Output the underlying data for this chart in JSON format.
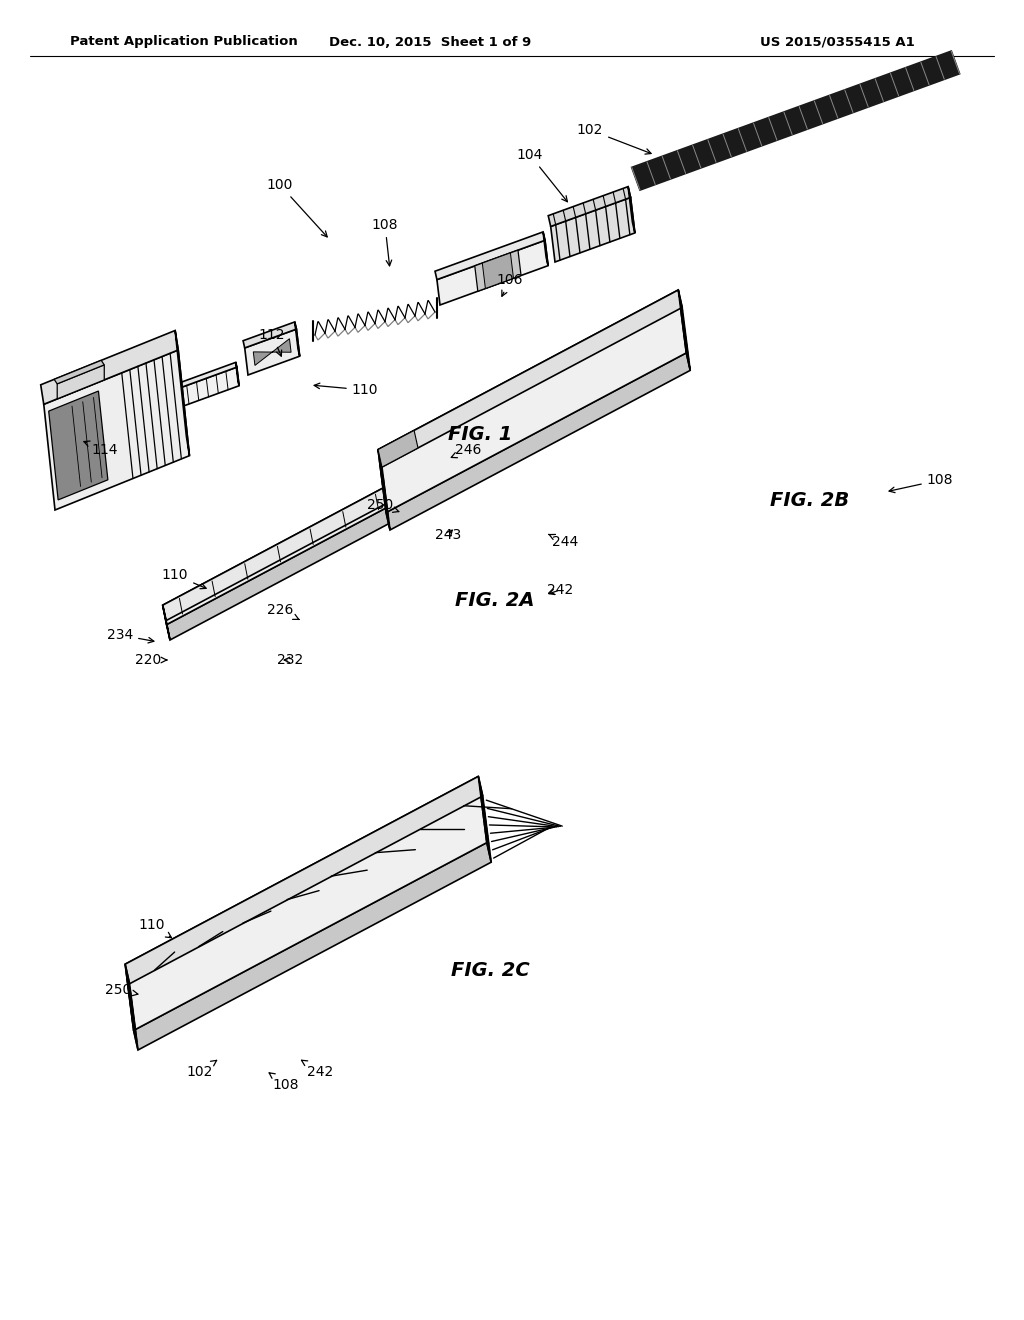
{
  "bg_color": "#ffffff",
  "header_left": "Patent Application Publication",
  "header_mid": "Dec. 10, 2015  Sheet 1 of 9",
  "header_right": "US 2015/0355415 A1",
  "fig1_label": "FIG. 1",
  "fig2a_label": "FIG. 2A",
  "fig2b_label": "FIG. 2B",
  "fig2c_label": "FIG. 2C",
  "line_color": "#000000",
  "fill_light": "#f5f5f5",
  "fill_mid": "#e0e0e0",
  "fill_dark": "#c0c0c0",
  "fill_cable": "#2a2a2a"
}
